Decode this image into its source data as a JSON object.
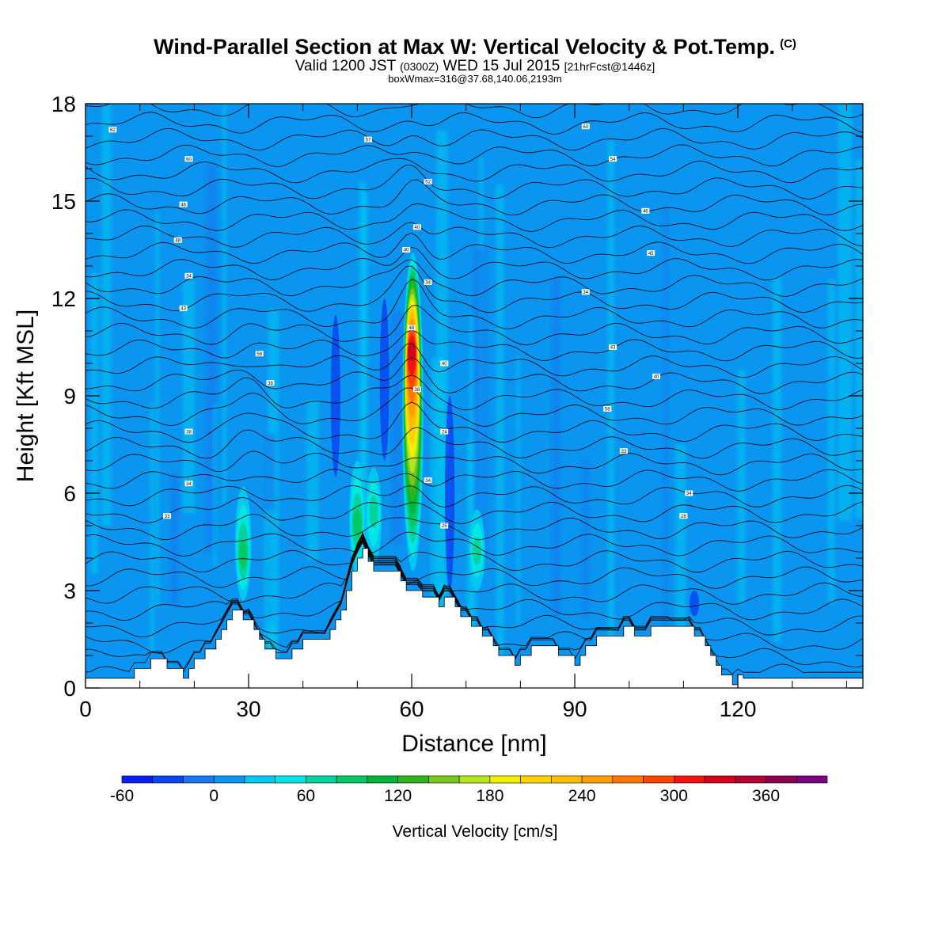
{
  "header": {
    "title_main": "Wind-Parallel Section at Max W: Vertical Velocity & Pot.Temp.",
    "title_mark": "(C)",
    "valid_a": "Valid 1200 JST",
    "valid_zone": "(0300Z)",
    "valid_b": "WED 15 Jul 2015",
    "valid_fcst": "[21hrFcst@1446z]",
    "boxw": "boxWmax=316@37.68,140.06,2193m"
  },
  "chart_data": {
    "type": "heatmap",
    "xlabel": "Distance [nm]",
    "ylabel": "Height [Kft MSL]",
    "xlim": [
      0,
      143
    ],
    "ylim": [
      0,
      18
    ],
    "xticks": [
      0,
      30,
      60,
      90,
      120
    ],
    "yticks": [
      0,
      3,
      6,
      9,
      12,
      15,
      18
    ],
    "colorbar": {
      "label": "Vertical Velocity [cm/s]",
      "range": [
        -60,
        400
      ],
      "step": 20,
      "tick_values": [
        -60,
        0,
        60,
        120,
        180,
        240,
        300,
        360
      ],
      "colors": [
        "#0a1ef0",
        "#0a46f0",
        "#1978f0",
        "#0a96f0",
        "#00c8f0",
        "#00e6e6",
        "#00d2a0",
        "#00c864",
        "#00b43c",
        "#32b41e",
        "#78c81e",
        "#b4e61e",
        "#f0f000",
        "#ffd200",
        "#ffbe00",
        "#ffa000",
        "#ff7800",
        "#ff4600",
        "#f01414",
        "#d2001e",
        "#b40032",
        "#8c0050",
        "#780082"
      ]
    },
    "background_w": 0,
    "updrafts": [
      {
        "x": 60,
        "z_bottom": 3.6,
        "z_top": 13.4,
        "peak_w": 316,
        "peak_z": 10.5
      },
      {
        "x": 29,
        "z_bottom": 2.7,
        "z_top": 6.2,
        "peak_w": 80,
        "peak_z": 4.0
      },
      {
        "x": 50,
        "z_bottom": 3.5,
        "z_top": 7.0,
        "peak_w": 70,
        "peak_z": 5.0
      },
      {
        "x": 53,
        "z_bottom": 3.8,
        "z_top": 6.8,
        "peak_w": 60,
        "peak_z": 5.5
      },
      {
        "x": 72,
        "z_bottom": 3.0,
        "z_top": 5.5,
        "peak_w": 50,
        "peak_z": 4.2
      }
    ],
    "downdrafts": [
      {
        "x": 67,
        "z_bottom": 3.0,
        "z_top": 9.0,
        "min_w": -40
      },
      {
        "x": 46,
        "z_bottom": 6.5,
        "z_top": 11.5,
        "min_w": -30
      },
      {
        "x": 55,
        "z_bottom": 7.0,
        "z_top": 12.0,
        "min_w": -25
      },
      {
        "x": 112,
        "z_bottom": 2.2,
        "z_top": 3.0,
        "min_w": -40
      }
    ],
    "terrain_kft": [
      [
        0,
        0.3
      ],
      [
        9,
        0.3
      ],
      [
        9,
        0.6
      ],
      [
        12,
        0.6
      ],
      [
        12,
        0.9
      ],
      [
        15,
        0.9
      ],
      [
        15,
        0.6
      ],
      [
        18,
        0.6
      ],
      [
        18,
        0.3
      ],
      [
        19,
        0.3
      ],
      [
        19,
        0.6
      ],
      [
        20,
        0.6
      ],
      [
        20,
        0.9
      ],
      [
        22,
        0.9
      ],
      [
        22,
        1.2
      ],
      [
        24,
        1.2
      ],
      [
        24,
        1.5
      ],
      [
        25,
        1.5
      ],
      [
        25,
        1.8
      ],
      [
        26,
        1.8
      ],
      [
        26,
        2.1
      ],
      [
        27,
        2.1
      ],
      [
        27,
        2.4
      ],
      [
        29,
        2.4
      ],
      [
        29,
        2.1
      ],
      [
        31,
        2.1
      ],
      [
        31,
        1.8
      ],
      [
        32,
        1.8
      ],
      [
        32,
        1.5
      ],
      [
        33,
        1.5
      ],
      [
        33,
        1.2
      ],
      [
        35,
        1.2
      ],
      [
        35,
        0.9
      ],
      [
        38,
        0.9
      ],
      [
        38,
        1.2
      ],
      [
        40,
        1.2
      ],
      [
        40,
        1.5
      ],
      [
        45,
        1.5
      ],
      [
        45,
        1.8
      ],
      [
        46,
        1.8
      ],
      [
        46,
        2.1
      ],
      [
        47,
        2.1
      ],
      [
        47,
        2.4
      ],
      [
        48,
        2.4
      ],
      [
        48,
        3.0
      ],
      [
        49,
        3.0
      ],
      [
        49,
        3.6
      ],
      [
        50,
        3.6
      ],
      [
        50,
        4.0
      ],
      [
        51,
        4.0
      ],
      [
        51,
        4.3
      ],
      [
        52,
        4.3
      ],
      [
        52,
        3.9
      ],
      [
        53,
        3.9
      ],
      [
        53,
        3.6
      ],
      [
        58,
        3.6
      ],
      [
        58,
        3.3
      ],
      [
        59,
        3.3
      ],
      [
        59,
        3.0
      ],
      [
        62,
        3.0
      ],
      [
        62,
        2.8
      ],
      [
        65,
        2.8
      ],
      [
        65,
        2.5
      ],
      [
        66,
        2.5
      ],
      [
        66,
        2.8
      ],
      [
        68,
        2.8
      ],
      [
        68,
        2.5
      ],
      [
        69,
        2.5
      ],
      [
        69,
        2.2
      ],
      [
        71,
        2.2
      ],
      [
        71,
        1.9
      ],
      [
        73,
        1.9
      ],
      [
        73,
        1.6
      ],
      [
        75,
        1.6
      ],
      [
        75,
        1.3
      ],
      [
        76,
        1.3
      ],
      [
        76,
        1.0
      ],
      [
        79,
        1.0
      ],
      [
        79,
        0.7
      ],
      [
        80,
        0.7
      ],
      [
        80,
        1.0
      ],
      [
        82,
        1.0
      ],
      [
        82,
        1.3
      ],
      [
        87,
        1.3
      ],
      [
        87,
        1.0
      ],
      [
        90,
        1.0
      ],
      [
        90,
        0.7
      ],
      [
        91,
        0.7
      ],
      [
        91,
        1.0
      ],
      [
        92,
        1.0
      ],
      [
        92,
        1.3
      ],
      [
        94,
        1.3
      ],
      [
        94,
        1.6
      ],
      [
        99,
        1.6
      ],
      [
        99,
        1.9
      ],
      [
        101,
        1.9
      ],
      [
        101,
        1.6
      ],
      [
        104,
        1.6
      ],
      [
        104,
        1.9
      ],
      [
        112,
        1.9
      ],
      [
        112,
        1.6
      ],
      [
        114,
        1.6
      ],
      [
        114,
        1.3
      ],
      [
        115,
        1.3
      ],
      [
        115,
        1.0
      ],
      [
        116,
        1.0
      ],
      [
        116,
        0.7
      ],
      [
        117,
        0.7
      ],
      [
        117,
        0.4
      ],
      [
        119,
        0.4
      ],
      [
        119,
        0.1
      ],
      [
        120,
        0.1
      ],
      [
        120,
        0.4
      ],
      [
        121,
        0.4
      ],
      [
        121,
        0.3
      ],
      [
        143,
        0.3
      ]
    ],
    "theta_contour_count": 40,
    "theta_contour_labels": [
      {
        "text": "62",
        "x": 5,
        "z": 17.2
      },
      {
        "text": "57",
        "x": 52,
        "z": 16.9
      },
      {
        "text": "60",
        "x": 92,
        "z": 17.3
      },
      {
        "text": "60",
        "x": 19,
        "z": 16.3
      },
      {
        "text": "54",
        "x": 97,
        "z": 16.3
      },
      {
        "text": "52",
        "x": 63,
        "z": 15.6
      },
      {
        "text": "46",
        "x": 18,
        "z": 14.9
      },
      {
        "text": "46",
        "x": 103,
        "z": 14.7
      },
      {
        "text": "40",
        "x": 61,
        "z": 14.2
      },
      {
        "text": "40",
        "x": 59,
        "z": 13.5
      },
      {
        "text": "48",
        "x": 17,
        "z": 13.8
      },
      {
        "text": "45",
        "x": 104,
        "z": 13.4
      },
      {
        "text": "34",
        "x": 19,
        "z": 12.7
      },
      {
        "text": "34",
        "x": 63,
        "z": 12.5
      },
      {
        "text": "34",
        "x": 92,
        "z": 12.2
      },
      {
        "text": "43",
        "x": 18,
        "z": 11.7
      },
      {
        "text": "48",
        "x": 60,
        "z": 11.1
      },
      {
        "text": "43",
        "x": 97,
        "z": 10.5
      },
      {
        "text": "58",
        "x": 32,
        "z": 10.3
      },
      {
        "text": "40",
        "x": 66,
        "z": 10.0
      },
      {
        "text": "40",
        "x": 105,
        "z": 9.6
      },
      {
        "text": "38",
        "x": 34,
        "z": 9.4
      },
      {
        "text": "38",
        "x": 61,
        "z": 9.2
      },
      {
        "text": "58",
        "x": 96,
        "z": 8.6
      },
      {
        "text": "38",
        "x": 19,
        "z": 7.9
      },
      {
        "text": "24",
        "x": 66,
        "z": 7.9
      },
      {
        "text": "33",
        "x": 99,
        "z": 7.3
      },
      {
        "text": "34",
        "x": 19,
        "z": 6.3
      },
      {
        "text": "34",
        "x": 63,
        "z": 6.4
      },
      {
        "text": "34",
        "x": 111,
        "z": 6.0
      },
      {
        "text": "33",
        "x": 15,
        "z": 5.3
      },
      {
        "text": "25",
        "x": 66,
        "z": 5.0
      },
      {
        "text": "28",
        "x": 110,
        "z": 5.3
      }
    ]
  }
}
